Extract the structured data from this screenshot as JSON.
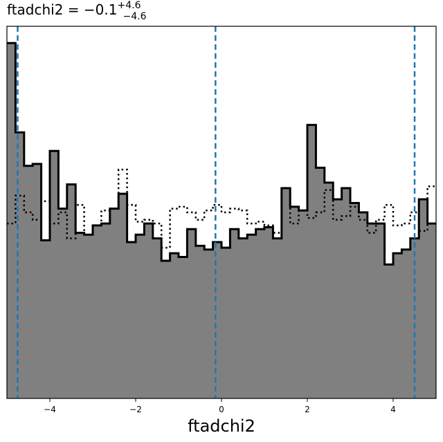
{
  "chart_data": {
    "type": "bar",
    "title": {
      "prefix": "ftadchi2 = −0.1",
      "sup": "+4.6",
      "sub": "−4.6"
    },
    "xlabel": "ftadchi2",
    "ylabel": "",
    "xlim": [
      -5.0,
      5.0
    ],
    "x_ticks": [
      -4,
      -2,
      0,
      2,
      4
    ],
    "x_tick_labels": [
      "−4",
      "−2",
      "0",
      "2",
      "4"
    ],
    "y_ticks_shown": false,
    "grid": false,
    "bins": {
      "start": -5.0,
      "width": 0.2,
      "count": 50
    },
    "series": [
      {
        "style": "filled",
        "fill": "#808080",
        "edge": "#000000",
        "values": [
          0.955,
          0.715,
          0.625,
          0.63,
          0.425,
          0.665,
          0.51,
          0.575,
          0.445,
          0.44,
          0.465,
          0.47,
          0.51,
          0.55,
          0.42,
          0.44,
          0.47,
          0.43,
          0.37,
          0.39,
          0.38,
          0.455,
          0.41,
          0.4,
          0.42,
          0.405,
          0.455,
          0.43,
          0.44,
          0.455,
          0.46,
          0.43,
          0.565,
          0.515,
          0.505,
          0.735,
          0.62,
          0.58,
          0.535,
          0.565,
          0.525,
          0.5,
          0.47,
          0.47,
          0.36,
          0.39,
          0.4,
          0.43,
          0.535,
          0.47
        ]
      },
      {
        "style": "dotted",
        "edge": "#000000",
        "values": [
          0.47,
          0.545,
          0.5,
          0.48,
          0.53,
          0.47,
          0.5,
          0.43,
          0.52,
          0.44,
          0.465,
          0.505,
          0.51,
          0.615,
          0.52,
          0.475,
          0.48,
          0.47,
          0.405,
          0.51,
          0.515,
          0.5,
          0.48,
          0.505,
          0.52,
          0.5,
          0.51,
          0.505,
          0.47,
          0.475,
          0.465,
          0.445,
          0.565,
          0.47,
          0.505,
          0.485,
          0.5,
          0.56,
          0.48,
          0.49,
          0.515,
          0.48,
          0.445,
          0.48,
          0.52,
          0.465,
          0.47,
          0.5,
          0.45,
          0.57
        ]
      }
    ],
    "vlines": {
      "color": "#1f77b4",
      "style": "dashed",
      "x": [
        -4.75,
        -0.14,
        4.5
      ]
    }
  }
}
